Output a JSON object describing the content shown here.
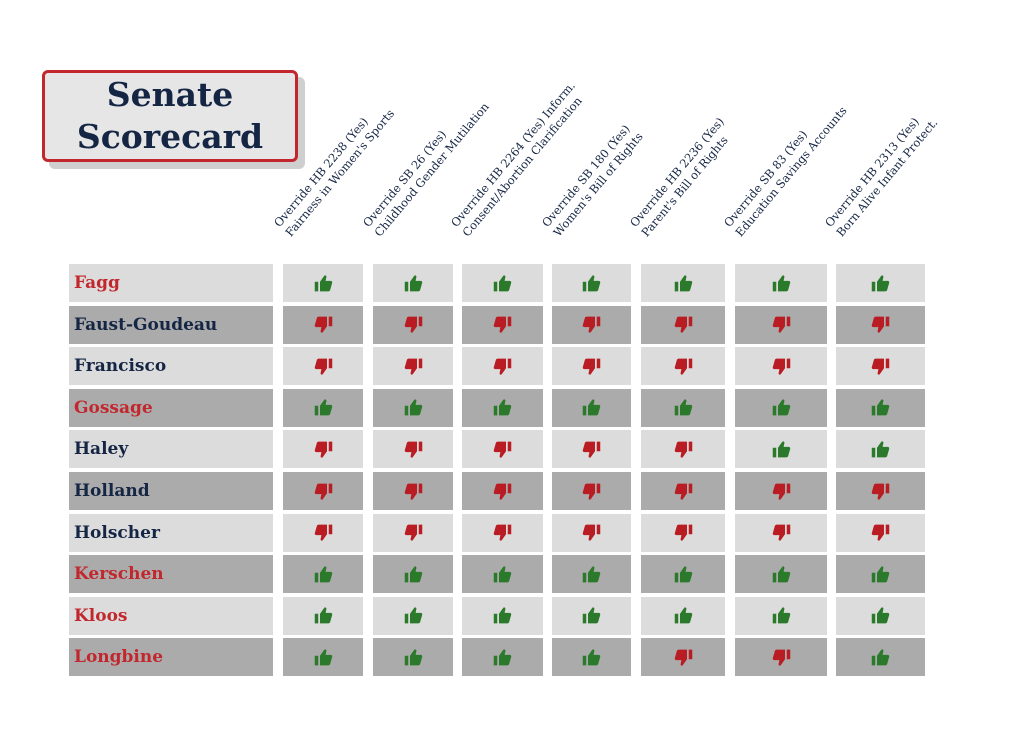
{
  "title": {
    "line1": "Senate",
    "line2": "Scorecard"
  },
  "colors": {
    "republican": "#c1272d",
    "democrat": "#152544",
    "yes": "#2b7a2b",
    "no": "#b91c22",
    "row_light": "#dcdcdc",
    "row_dark": "#ababab"
  },
  "columns": [
    {
      "line1": "Override HB 2238 (Yes)",
      "line2": "Fairness in Women's Sports"
    },
    {
      "line1": "Override SB 26 (Yes)",
      "line2": "Childhood Gender Mutilation"
    },
    {
      "line1": "Override HB 2264 (Yes) Inform.",
      "line2": "Consent/Abortion Clarification"
    },
    {
      "line1": "Override SB 180 (Yes)",
      "line2": "Women's Bill of Rights"
    },
    {
      "line1": "Override HB 2236 (Yes)",
      "line2": "Parent's Bill of Rights"
    },
    {
      "line1": "Override SB 83 (Yes)",
      "line2": "Education Savings Accounts"
    },
    {
      "line1": "Override HB 2313 (Yes)",
      "line2": "Born Alive Infant Protect."
    }
  ],
  "senators": [
    {
      "name": "Fagg",
      "party": "republican",
      "votes": [
        "up",
        "up",
        "up",
        "up",
        "up",
        "up",
        "up"
      ]
    },
    {
      "name": "Faust-Goudeau",
      "party": "democrat",
      "votes": [
        "down",
        "down",
        "down",
        "down",
        "down",
        "down",
        "down"
      ]
    },
    {
      "name": "Francisco",
      "party": "democrat",
      "votes": [
        "down",
        "down",
        "down",
        "down",
        "down",
        "down",
        "down"
      ]
    },
    {
      "name": "Gossage",
      "party": "republican",
      "votes": [
        "up",
        "up",
        "up",
        "up",
        "up",
        "up",
        "up"
      ]
    },
    {
      "name": "Haley",
      "party": "democrat",
      "votes": [
        "down",
        "down",
        "down",
        "down",
        "down",
        "up",
        "up"
      ]
    },
    {
      "name": "Holland",
      "party": "democrat",
      "votes": [
        "down",
        "down",
        "down",
        "down",
        "down",
        "down",
        "down"
      ]
    },
    {
      "name": "Holscher",
      "party": "democrat",
      "votes": [
        "down",
        "down",
        "down",
        "down",
        "down",
        "down",
        "down"
      ]
    },
    {
      "name": "Kerschen",
      "party": "republican",
      "votes": [
        "up",
        "up",
        "up",
        "up",
        "up",
        "up",
        "up"
      ]
    },
    {
      "name": "Kloos",
      "party": "republican",
      "votes": [
        "up",
        "up",
        "up",
        "up",
        "up",
        "up",
        "up"
      ]
    },
    {
      "name": "Longbine",
      "party": "republican",
      "votes": [
        "up",
        "up",
        "up",
        "up",
        "down",
        "down",
        "up"
      ]
    }
  ]
}
